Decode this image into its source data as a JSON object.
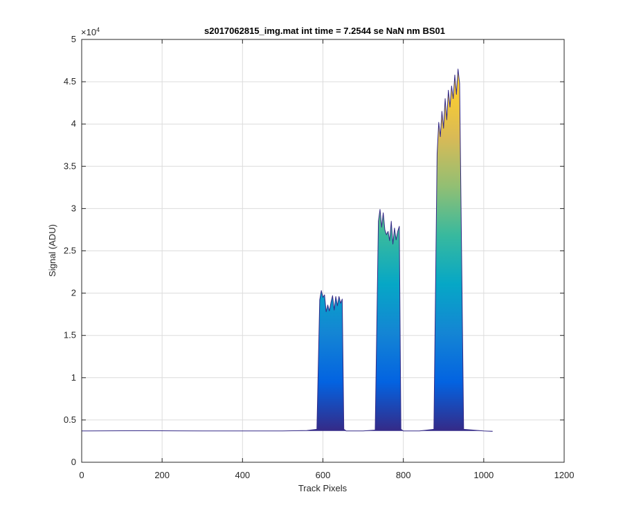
{
  "chart_data": {
    "type": "area",
    "title": "s2017062815_img.mat int time = 7.2544 se  NaN nm BS01",
    "xlabel": "Track Pixels",
    "ylabel": "Signal (ADU)",
    "xlim": [
      0,
      1200
    ],
    "ylim": [
      0,
      50000
    ],
    "x_ticks": [
      0,
      200,
      400,
      600,
      800,
      1000,
      1200
    ],
    "y_ticks": [
      0,
      5000,
      10000,
      15000,
      20000,
      25000,
      30000,
      35000,
      40000,
      45000,
      50000
    ],
    "x_tick_labels": [
      "0",
      "200",
      "400",
      "600",
      "800",
      "1000",
      "1200"
    ],
    "y_tick_labels": [
      "0",
      "0.5",
      "1",
      "1.5",
      "2",
      "2.5",
      "3",
      "3.5",
      "4",
      "4.5",
      "5"
    ],
    "y_exponent_label": "×10",
    "y_exponent_power": "4",
    "grid": true,
    "colormap": "parula",
    "colormap_stops": [
      "#352a87",
      "#0363e1",
      "#1485d4",
      "#06a7c6",
      "#38b99e",
      "#92bf73",
      "#d9ba56",
      "#fcce2e",
      "#f9fb0e"
    ],
    "color_range": [
      3700,
      50000
    ],
    "baseline": 3700,
    "series": [
      {
        "x": [
          0,
          100,
          150,
          300,
          500,
          560,
          585,
          592,
          596,
          600,
          604,
          608,
          612,
          616,
          620,
          624,
          628,
          632,
          636,
          640,
          644,
          648,
          652,
          658,
          700,
          730,
          738,
          742,
          746,
          750,
          754,
          758,
          762,
          766,
          770,
          774,
          778,
          782,
          786,
          790,
          794,
          800,
          840,
          876,
          884,
          888,
          892,
          896,
          900,
          904,
          908,
          912,
          916,
          920,
          924,
          928,
          932,
          936,
          940,
          950,
          1000,
          1022
        ],
        "y": [
          3700,
          3720,
          3730,
          3700,
          3700,
          3750,
          3900,
          19200,
          20300,
          19500,
          19800,
          17800,
          18600,
          17900,
          18900,
          19700,
          18000,
          19600,
          18500,
          19600,
          18800,
          19300,
          3900,
          3700,
          3700,
          3800,
          28500,
          29900,
          27800,
          29500,
          27500,
          26900,
          27300,
          26200,
          28500,
          25800,
          27700,
          26300,
          27300,
          27900,
          3900,
          3700,
          3700,
          3900,
          36500,
          40200,
          38500,
          41500,
          39500,
          43000,
          40500,
          44000,
          42000,
          44500,
          43000,
          45800,
          43500,
          46500,
          44800,
          3900,
          3700,
          3650
        ]
      }
    ]
  }
}
